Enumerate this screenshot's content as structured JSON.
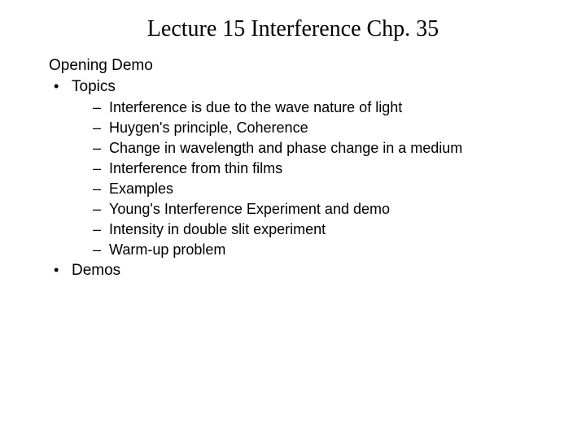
{
  "title": "Lecture 15 Interference Chp. 35",
  "opening": "Opening Demo",
  "topics_label": "Topics",
  "topics": [
    "Interference is due to the wave nature of light",
    "Huygen's principle, Coherence",
    "Change in wavelength and phase change in a medium",
    "Interference from thin films",
    "Examples",
    "Young's Interference Experiment and demo",
    "Intensity in double slit experiment",
    "Warm-up problem"
  ],
  "demos_label": "Demos",
  "colors": {
    "background": "#ffffff",
    "text": "#000000"
  },
  "typography": {
    "title_font": "Times New Roman",
    "body_font": "Arial",
    "title_fontsize": 28,
    "body_fontsize": 19,
    "sub_fontsize": 18
  }
}
